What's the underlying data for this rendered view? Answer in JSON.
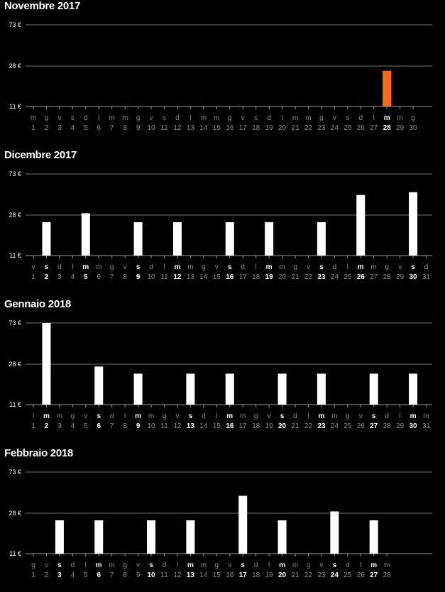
{
  "chart_data": [
    {
      "type": "bar",
      "title": "Novembre 2017",
      "ylim": [
        11,
        73
      ],
      "y_tick_labels": [
        "73 €",
        "28 €",
        "11 €"
      ],
      "weekdays": [
        "m",
        "g",
        "v",
        "s",
        "d",
        "l",
        "m",
        "m",
        "g",
        "v",
        "s",
        "d",
        "l",
        "m",
        "m",
        "g",
        "v",
        "s",
        "d",
        "l",
        "m",
        "m",
        "g",
        "v",
        "s",
        "d",
        "l",
        "m",
        "m",
        "g"
      ],
      "days": [
        1,
        2,
        3,
        4,
        5,
        6,
        7,
        8,
        9,
        10,
        11,
        12,
        13,
        14,
        15,
        16,
        17,
        18,
        19,
        20,
        21,
        22,
        23,
        24,
        25,
        26,
        27,
        28,
        29,
        30
      ],
      "bars": [
        {
          "day": 28,
          "value": 26,
          "color": "#ff6a13"
        }
      ],
      "bold_days": [
        28
      ]
    },
    {
      "type": "bar",
      "title": "Dicembre 2017",
      "ylim": [
        11,
        73
      ],
      "y_tick_labels": [
        "73 €",
        "28 €",
        "11 €"
      ],
      "weekdays": [
        "v",
        "s",
        "d",
        "l",
        "m",
        "m",
        "g",
        "v",
        "s",
        "d",
        "l",
        "m",
        "m",
        "g",
        "v",
        "s",
        "d",
        "l",
        "m",
        "m",
        "g",
        "v",
        "s",
        "d",
        "l",
        "m",
        "m",
        "g",
        "v",
        "s",
        "d"
      ],
      "days": [
        1,
        2,
        3,
        4,
        5,
        6,
        7,
        8,
        9,
        10,
        11,
        12,
        13,
        14,
        15,
        16,
        17,
        18,
        19,
        20,
        21,
        22,
        23,
        24,
        25,
        26,
        27,
        28,
        29,
        30,
        31
      ],
      "bars": [
        {
          "day": 2,
          "value": 25
        },
        {
          "day": 5,
          "value": 30
        },
        {
          "day": 9,
          "value": 25
        },
        {
          "day": 12,
          "value": 25
        },
        {
          "day": 16,
          "value": 25
        },
        {
          "day": 19,
          "value": 25
        },
        {
          "day": 23,
          "value": 25
        },
        {
          "day": 26,
          "value": 50
        },
        {
          "day": 30,
          "value": 53
        }
      ],
      "bold_days": [
        2,
        5,
        9,
        12,
        16,
        19,
        23,
        26,
        30
      ]
    },
    {
      "type": "bar",
      "title": "Gennaio 2018",
      "ylim": [
        11,
        73
      ],
      "y_tick_labels": [
        "73 €",
        "28 €",
        "11 €"
      ],
      "weekdays": [
        "l",
        "m",
        "m",
        "g",
        "v",
        "s",
        "d",
        "l",
        "m",
        "m",
        "g",
        "v",
        "s",
        "d",
        "l",
        "m",
        "m",
        "g",
        "v",
        "s",
        "d",
        "l",
        "m",
        "m",
        "g",
        "v",
        "s",
        "d",
        "l",
        "m",
        "m"
      ],
      "days": [
        1,
        2,
        3,
        4,
        5,
        6,
        7,
        8,
        9,
        10,
        11,
        12,
        13,
        14,
        15,
        16,
        17,
        18,
        19,
        20,
        21,
        22,
        23,
        24,
        25,
        26,
        27,
        28,
        29,
        30,
        31
      ],
      "bars": [
        {
          "day": 2,
          "value": 73
        },
        {
          "day": 6,
          "value": 27
        },
        {
          "day": 9,
          "value": 24
        },
        {
          "day": 13,
          "value": 24
        },
        {
          "day": 16,
          "value": 24
        },
        {
          "day": 20,
          "value": 24
        },
        {
          "day": 23,
          "value": 24
        },
        {
          "day": 27,
          "value": 24
        },
        {
          "day": 30,
          "value": 24
        }
      ],
      "bold_days": [
        2,
        6,
        9,
        13,
        16,
        20,
        23,
        27,
        30
      ]
    },
    {
      "type": "bar",
      "title": "Febbraio 2018",
      "ylim": [
        11,
        73
      ],
      "y_tick_labels": [
        "73 €",
        "28 €",
        "11 €"
      ],
      "weekdays": [
        "g",
        "v",
        "s",
        "d",
        "l",
        "m",
        "m",
        "g",
        "v",
        "s",
        "d",
        "l",
        "m",
        "m",
        "g",
        "v",
        "s",
        "d",
        "l",
        "m",
        "m",
        "g",
        "v",
        "s",
        "d",
        "l",
        "m",
        "m"
      ],
      "days": [
        1,
        2,
        3,
        4,
        5,
        6,
        7,
        8,
        9,
        10,
        11,
        12,
        13,
        14,
        15,
        16,
        17,
        18,
        19,
        20,
        21,
        22,
        23,
        24,
        25,
        26,
        27,
        28
      ],
      "bars": [
        {
          "day": 3,
          "value": 25
        },
        {
          "day": 6,
          "value": 25
        },
        {
          "day": 10,
          "value": 25
        },
        {
          "day": 13,
          "value": 25
        },
        {
          "day": 17,
          "value": 47
        },
        {
          "day": 20,
          "value": 25
        },
        {
          "day": 24,
          "value": 30
        },
        {
          "day": 27,
          "value": 25
        }
      ],
      "bold_days": [
        3,
        6,
        10,
        13,
        17,
        20,
        24,
        27
      ]
    }
  ]
}
